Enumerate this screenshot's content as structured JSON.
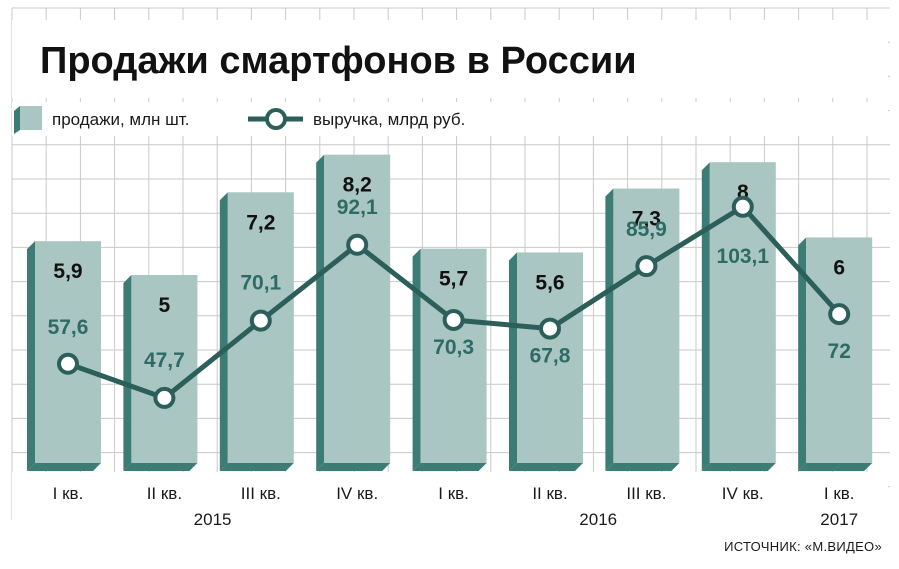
{
  "chart_data": {
    "type": "bar",
    "title": "Продажи смартфонов в России",
    "categories": [
      "I кв.",
      "II кв.",
      "III кв.",
      "IV кв.",
      "I кв.",
      "II кв.",
      "III кв.",
      "IV кв.",
      "I кв."
    ],
    "years": [
      {
        "label": "2015",
        "from": 0,
        "to": 3
      },
      {
        "label": "2016",
        "from": 4,
        "to": 7
      },
      {
        "label": "2017",
        "from": 8,
        "to": 8
      }
    ],
    "series": [
      {
        "name": "продажи, млн шт.",
        "type": "bar",
        "values": [
          5.9,
          5,
          7.2,
          8.2,
          5.7,
          5.6,
          7.3,
          8,
          6
        ],
        "labels": [
          "5,9",
          "5",
          "7,2",
          "8,2",
          "5,7",
          "5,6",
          "7,3",
          "8",
          "6"
        ]
      },
      {
        "name": "выручка, млрд руб.",
        "type": "line",
        "values": [
          57.6,
          47.7,
          70.1,
          92.1,
          70.3,
          67.8,
          85.9,
          103.1,
          72
        ],
        "labels": [
          "57,6",
          "47,7",
          "70,1",
          "92,1",
          "70,3",
          "67,8",
          "85,9",
          "103,1",
          "72"
        ]
      }
    ],
    "source": "ИСТОЧНИК: «М.ВИДЕО»",
    "grid": true,
    "legend_position": "top-left"
  },
  "colors": {
    "bar_face": "#a9c6c2",
    "bar_side": "#3d7c74",
    "line": "#2c5f5a",
    "line_label": "#2f6b66",
    "grid": "#c9c9c9"
  }
}
